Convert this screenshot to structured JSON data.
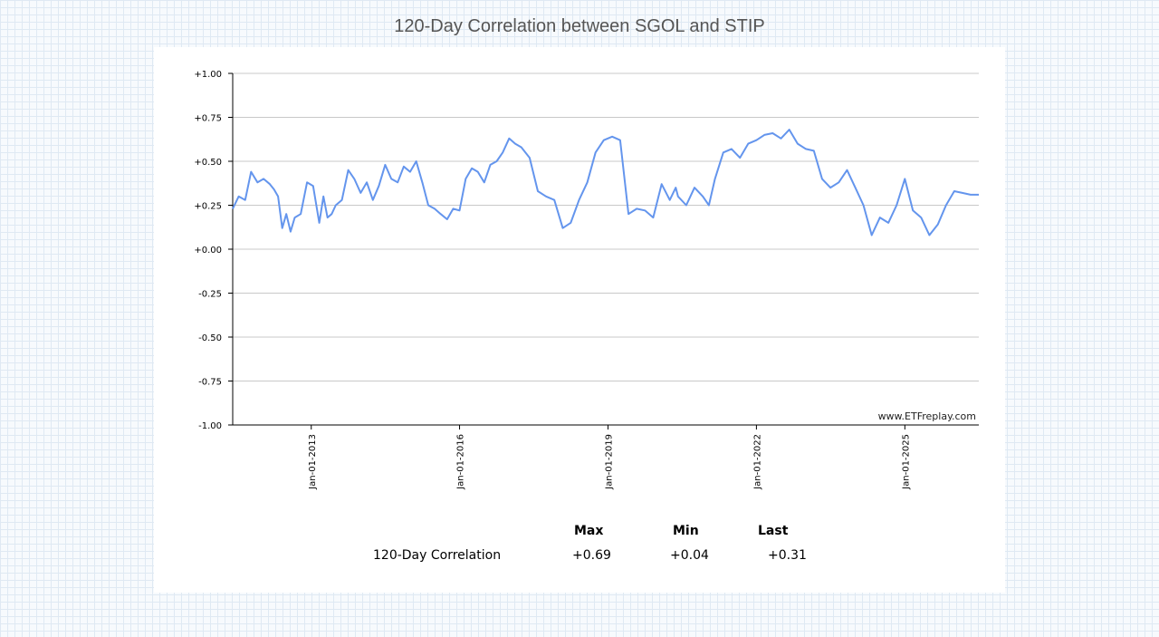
{
  "page": {
    "title": "120-Day Correlation between SGOL and STIP"
  },
  "chart_data": {
    "type": "line",
    "title": "120-Day Correlation between SGOL and STIP",
    "xlabel": "",
    "ylabel": "",
    "xlim": [
      "2011-06-01",
      "2026-07-01"
    ],
    "ylim": [
      -1.0,
      1.0
    ],
    "yticks": [
      1.0,
      0.75,
      0.5,
      0.25,
      0.0,
      -0.25,
      -0.5,
      -0.75,
      -1.0
    ],
    "ytick_labels": [
      "+1.00",
      "+0.75",
      "+0.50",
      "+0.25",
      "+0.00",
      "-0.25",
      "-0.50",
      "-0.75",
      "-1.00"
    ],
    "xticks": [
      "2013-01-01",
      "2016-01-01",
      "2019-01-01",
      "2022-01-01",
      "2025-01-01"
    ],
    "xtick_labels": [
      "Jan-01-2013",
      "Jan-01-2016",
      "Jan-01-2019",
      "Jan-01-2022",
      "Jan-01-2025"
    ],
    "grid": "horizontal",
    "line_color": "#6495ed",
    "watermark": "www.ETFreplay.com",
    "series": [
      {
        "x": [
          "2011-06-01",
          "2011-07-15",
          "2011-09-01",
          "2011-10-15",
          "2011-12-01",
          "2012-01-15",
          "2012-03-01",
          "2012-04-01",
          "2012-05-01",
          "2012-06-01",
          "2012-07-01",
          "2012-08-01",
          "2012-09-01",
          "2012-10-15",
          "2012-12-01",
          "2013-01-15",
          "2013-03-01",
          "2013-04-01",
          "2013-05-01",
          "2013-06-01",
          "2013-07-01",
          "2013-08-15",
          "2013-10-01",
          "2013-11-15",
          "2014-01-01",
          "2014-02-15",
          "2014-04-01",
          "2014-05-15",
          "2014-07-01",
          "2014-08-15",
          "2014-10-01",
          "2014-11-15",
          "2015-01-01",
          "2015-02-15",
          "2015-04-01",
          "2015-05-15",
          "2015-07-01",
          "2015-08-15",
          "2015-10-01",
          "2015-11-15",
          "2016-01-01",
          "2016-02-15",
          "2016-04-01",
          "2016-05-15",
          "2016-07-01",
          "2016-08-15",
          "2016-10-01",
          "2016-11-15",
          "2017-01-01",
          "2017-02-15",
          "2017-04-01",
          "2017-06-01",
          "2017-08-01",
          "2017-10-01",
          "2017-12-01",
          "2018-02-01",
          "2018-04-01",
          "2018-06-01",
          "2018-08-01",
          "2018-10-01",
          "2018-12-01",
          "2019-02-01",
          "2019-04-01",
          "2019-06-01",
          "2019-08-01",
          "2019-10-01",
          "2019-12-01",
          "2020-02-01",
          "2020-04-01",
          "2020-05-15",
          "2020-06-01",
          "2020-08-01",
          "2020-10-01",
          "2020-12-01",
          "2021-01-15",
          "2021-03-01",
          "2021-05-01",
          "2021-07-01",
          "2021-09-01",
          "2021-11-01",
          "2022-01-01",
          "2022-03-01",
          "2022-05-01",
          "2022-07-01",
          "2022-09-01",
          "2022-11-01",
          "2023-01-01",
          "2023-03-01",
          "2023-05-01",
          "2023-07-01",
          "2023-09-01",
          "2023-11-01",
          "2024-01-01",
          "2024-03-01",
          "2024-05-01",
          "2024-07-01",
          "2024-09-01",
          "2024-11-01",
          "2025-01-01",
          "2025-03-01",
          "2025-05-01",
          "2025-07-01",
          "2025-09-01",
          "2025-11-01",
          "2026-01-01",
          "2026-03-01",
          "2026-05-01",
          "2026-07-01"
        ],
        "y": [
          0.23,
          0.3,
          0.28,
          0.44,
          0.38,
          0.4,
          0.37,
          0.34,
          0.3,
          0.12,
          0.2,
          0.1,
          0.18,
          0.2,
          0.38,
          0.36,
          0.15,
          0.3,
          0.18,
          0.2,
          0.25,
          0.28,
          0.45,
          0.4,
          0.32,
          0.38,
          0.28,
          0.36,
          0.48,
          0.4,
          0.38,
          0.47,
          0.44,
          0.5,
          0.38,
          0.25,
          0.23,
          0.2,
          0.17,
          0.23,
          0.22,
          0.4,
          0.46,
          0.44,
          0.38,
          0.48,
          0.5,
          0.55,
          0.63,
          0.6,
          0.58,
          0.52,
          0.33,
          0.3,
          0.28,
          0.12,
          0.15,
          0.28,
          0.38,
          0.55,
          0.62,
          0.64,
          0.62,
          0.2,
          0.23,
          0.22,
          0.18,
          0.37,
          0.28,
          0.35,
          0.3,
          0.25,
          0.35,
          0.3,
          0.25,
          0.4,
          0.55,
          0.57,
          0.52,
          0.6,
          0.62,
          0.65,
          0.66,
          0.63,
          0.68,
          0.6,
          0.57,
          0.56,
          0.4,
          0.35,
          0.38,
          0.45,
          0.35,
          0.25,
          0.08,
          0.18,
          0.15,
          0.25,
          0.4,
          0.22,
          0.18,
          0.08,
          0.14,
          0.25,
          0.33,
          0.32,
          0.31,
          0.31
        ]
      }
    ],
    "stats": {
      "columns": [
        "Max",
        "Min",
        "Last"
      ],
      "row_label": "120-Day Correlation",
      "values": [
        "+0.69",
        "+0.04",
        "+0.31"
      ]
    }
  }
}
